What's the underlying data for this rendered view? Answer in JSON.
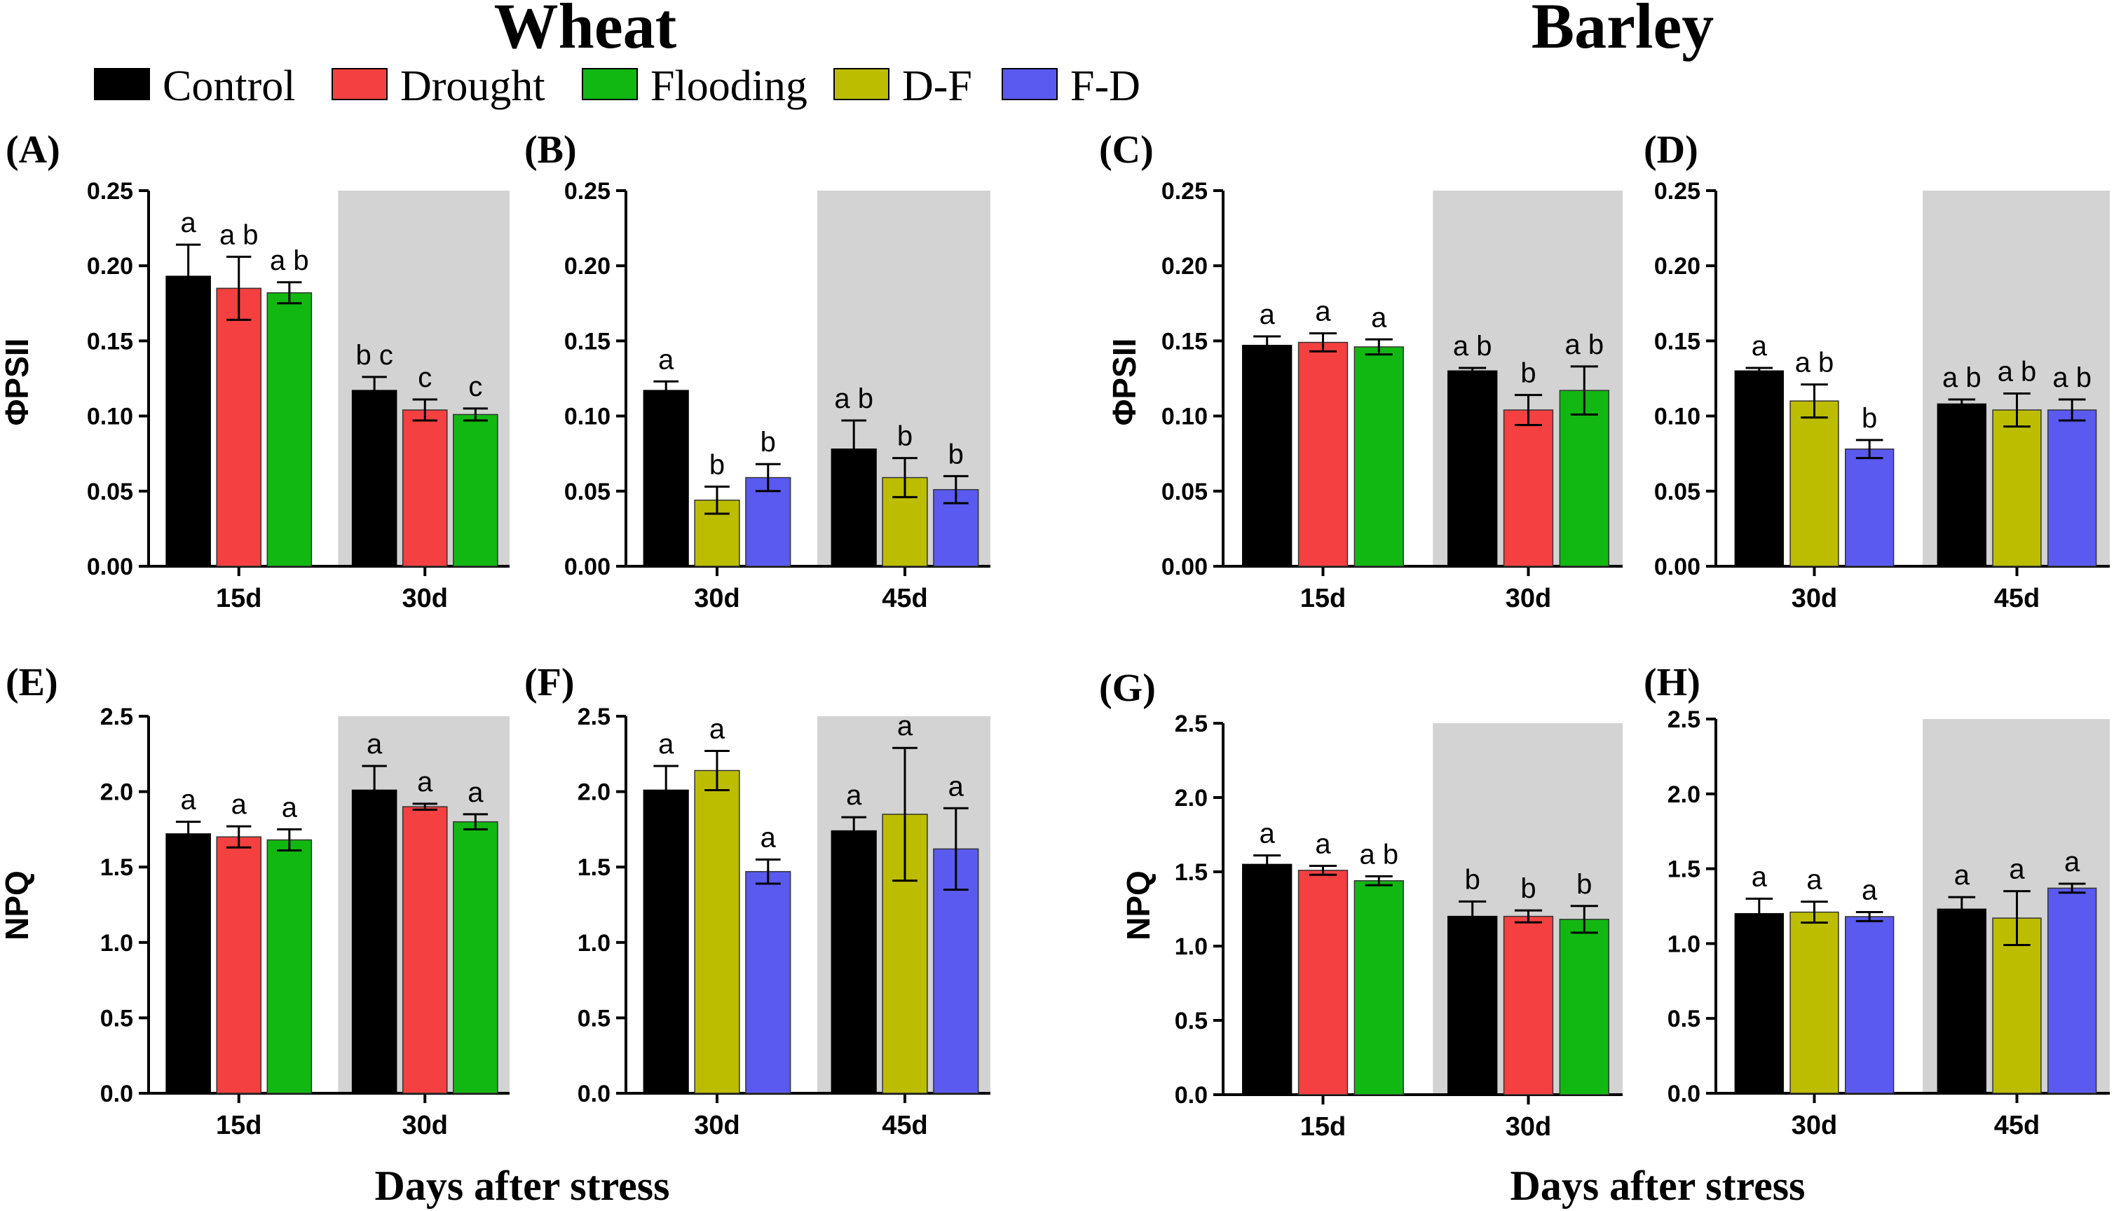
{
  "figure": {
    "titles": {
      "wheat": "Wheat",
      "barley": "Barley"
    },
    "legend": [
      {
        "label": "Control",
        "color": "#000000"
      },
      {
        "label": "Drought",
        "color": "#f44040"
      },
      {
        "label": "Flooding",
        "color": "#12b812"
      },
      {
        "label": "D-F",
        "color": "#bdbd00"
      },
      {
        "label": "F-D",
        "color": "#5a5af0"
      }
    ],
    "x_titles": {
      "wheat": "Days after stress",
      "barley": "Days after stress"
    },
    "ylabels": {
      "phipsii": "ΦPSII",
      "npq": "NPQ"
    }
  },
  "chart_data": [
    {
      "panel": "(A)",
      "type": "bar",
      "ylabel": "ΦPSII",
      "ylim": [
        0,
        0.25
      ],
      "yticks": [
        "0.00",
        "0.05",
        "0.10",
        "0.15",
        "0.20",
        "0.25"
      ],
      "shaded_group": 1,
      "groups": [
        {
          "label": "15d",
          "bars": [
            {
              "series": "Control",
              "value": 0.193,
              "err": 0.021,
              "sig": "a"
            },
            {
              "series": "Drought",
              "value": 0.185,
              "err": 0.021,
              "sig": "a b"
            },
            {
              "series": "Flooding",
              "value": 0.182,
              "err": 0.007,
              "sig": "a b"
            }
          ]
        },
        {
          "label": "30d",
          "bars": [
            {
              "series": "Control",
              "value": 0.117,
              "err": 0.009,
              "sig": "b c"
            },
            {
              "series": "Drought",
              "value": 0.104,
              "err": 0.007,
              "sig": "c"
            },
            {
              "series": "Flooding",
              "value": 0.101,
              "err": 0.004,
              "sig": "c"
            }
          ]
        }
      ]
    },
    {
      "panel": "(B)",
      "type": "bar",
      "ylabel": "",
      "ylim": [
        0,
        0.25
      ],
      "yticks": [
        "0.00",
        "0.05",
        "0.10",
        "0.15",
        "0.20",
        "0.25"
      ],
      "shaded_group": 1,
      "groups": [
        {
          "label": "30d",
          "bars": [
            {
              "series": "Control",
              "value": 0.117,
              "err": 0.006,
              "sig": "a"
            },
            {
              "series": "D-F",
              "value": 0.044,
              "err": 0.009,
              "sig": "b"
            },
            {
              "series": "F-D",
              "value": 0.059,
              "err": 0.009,
              "sig": "b"
            }
          ]
        },
        {
          "label": "45d",
          "bars": [
            {
              "series": "Control",
              "value": 0.078,
              "err": 0.019,
              "sig": "a b"
            },
            {
              "series": "D-F",
              "value": 0.059,
              "err": 0.013,
              "sig": "b"
            },
            {
              "series": "F-D",
              "value": 0.051,
              "err": 0.009,
              "sig": "b"
            }
          ]
        }
      ]
    },
    {
      "panel": "(C)",
      "type": "bar",
      "ylabel": "ΦPSII",
      "ylim": [
        0,
        0.25
      ],
      "yticks": [
        "0.00",
        "0.05",
        "0.10",
        "0.15",
        "0.20",
        "0.25"
      ],
      "shaded_group": 1,
      "groups": [
        {
          "label": "15d",
          "bars": [
            {
              "series": "Control",
              "value": 0.147,
              "err": 0.006,
              "sig": "a"
            },
            {
              "series": "Drought",
              "value": 0.149,
              "err": 0.006,
              "sig": "a"
            },
            {
              "series": "Flooding",
              "value": 0.146,
              "err": 0.005,
              "sig": "a"
            }
          ]
        },
        {
          "label": "30d",
          "bars": [
            {
              "series": "Control",
              "value": 0.13,
              "err": 0.002,
              "sig": "a b"
            },
            {
              "series": "Drought",
              "value": 0.104,
              "err": 0.01,
              "sig": "b"
            },
            {
              "series": "Flooding",
              "value": 0.117,
              "err": 0.016,
              "sig": "a b"
            }
          ]
        }
      ]
    },
    {
      "panel": "(D)",
      "type": "bar",
      "ylabel": "",
      "ylim": [
        0,
        0.25
      ],
      "yticks": [
        "0.00",
        "0.05",
        "0.10",
        "0.15",
        "0.20",
        "0.25"
      ],
      "shaded_group": 1,
      "groups": [
        {
          "label": "30d",
          "bars": [
            {
              "series": "Control",
              "value": 0.13,
              "err": 0.002,
              "sig": "a"
            },
            {
              "series": "D-F",
              "value": 0.11,
              "err": 0.011,
              "sig": "a b"
            },
            {
              "series": "F-D",
              "value": 0.078,
              "err": 0.006,
              "sig": "b"
            }
          ]
        },
        {
          "label": "45d",
          "bars": [
            {
              "series": "Control",
              "value": 0.108,
              "err": 0.003,
              "sig": "a b"
            },
            {
              "series": "D-F",
              "value": 0.104,
              "err": 0.011,
              "sig": "a b"
            },
            {
              "series": "F-D",
              "value": 0.104,
              "err": 0.007,
              "sig": "a b"
            }
          ]
        }
      ]
    },
    {
      "panel": "(E)",
      "type": "bar",
      "ylabel": "NPQ",
      "ylim": [
        0,
        2.5
      ],
      "yticks": [
        "0.0",
        "0.5",
        "1.0",
        "1.5",
        "2.0",
        "2.5"
      ],
      "shaded_group": 1,
      "groups": [
        {
          "label": "15d",
          "bars": [
            {
              "series": "Control",
              "value": 1.72,
              "err": 0.08,
              "sig": "a"
            },
            {
              "series": "Drought",
              "value": 1.7,
              "err": 0.07,
              "sig": "a"
            },
            {
              "series": "Flooding",
              "value": 1.68,
              "err": 0.07,
              "sig": "a"
            }
          ]
        },
        {
          "label": "30d",
          "bars": [
            {
              "series": "Control",
              "value": 2.01,
              "err": 0.16,
              "sig": "a"
            },
            {
              "series": "Drought",
              "value": 1.9,
              "err": 0.02,
              "sig": "a"
            },
            {
              "series": "Flooding",
              "value": 1.8,
              "err": 0.05,
              "sig": "a"
            }
          ]
        }
      ]
    },
    {
      "panel": "(F)",
      "type": "bar",
      "ylabel": "",
      "ylim": [
        0,
        2.5
      ],
      "yticks": [
        "0.0",
        "0.5",
        "1.0",
        "1.5",
        "2.0",
        "2.5"
      ],
      "shaded_group": 1,
      "groups": [
        {
          "label": "30d",
          "bars": [
            {
              "series": "Control",
              "value": 2.01,
              "err": 0.16,
              "sig": "a"
            },
            {
              "series": "D-F",
              "value": 2.14,
              "err": 0.13,
              "sig": "a"
            },
            {
              "series": "F-D",
              "value": 1.47,
              "err": 0.08,
              "sig": "a"
            }
          ]
        },
        {
          "label": "45d",
          "bars": [
            {
              "series": "Control",
              "value": 1.74,
              "err": 0.09,
              "sig": "a"
            },
            {
              "series": "D-F",
              "value": 1.85,
              "err": 0.44,
              "sig": "a"
            },
            {
              "series": "F-D",
              "value": 1.62,
              "err": 0.27,
              "sig": "a"
            }
          ]
        }
      ]
    },
    {
      "panel": "(G)",
      "type": "bar",
      "ylabel": "NPQ",
      "ylim": [
        0,
        2.5
      ],
      "yticks": [
        "0.0",
        "0.5",
        "1.0",
        "1.5",
        "2.0",
        "2.5"
      ],
      "shaded_group": 1,
      "groups": [
        {
          "label": "15d",
          "bars": [
            {
              "series": "Control",
              "value": 1.55,
              "err": 0.06,
              "sig": "a"
            },
            {
              "series": "Drought",
              "value": 1.51,
              "err": 0.03,
              "sig": "a"
            },
            {
              "series": "Flooding",
              "value": 1.44,
              "err": 0.03,
              "sig": "a b"
            }
          ]
        },
        {
          "label": "30d",
          "bars": [
            {
              "series": "Control",
              "value": 1.2,
              "err": 0.1,
              "sig": "b"
            },
            {
              "series": "Drought",
              "value": 1.2,
              "err": 0.04,
              "sig": "b"
            },
            {
              "series": "Flooding",
              "value": 1.18,
              "err": 0.09,
              "sig": "b"
            }
          ]
        }
      ]
    },
    {
      "panel": "(H)",
      "type": "bar",
      "ylabel": "",
      "ylim": [
        0,
        2.5
      ],
      "yticks": [
        "0.0",
        "0.5",
        "1.0",
        "1.5",
        "2.0",
        "2.5"
      ],
      "shaded_group": 1,
      "groups": [
        {
          "label": "30d",
          "bars": [
            {
              "series": "Control",
              "value": 1.2,
              "err": 0.1,
              "sig": "a"
            },
            {
              "series": "D-F",
              "value": 1.21,
              "err": 0.07,
              "sig": "a"
            },
            {
              "series": "F-D",
              "value": 1.18,
              "err": 0.03,
              "sig": "a"
            }
          ]
        },
        {
          "label": "45d",
          "bars": [
            {
              "series": "Control",
              "value": 1.23,
              "err": 0.08,
              "sig": "a"
            },
            {
              "series": "D-F",
              "value": 1.17,
              "err": 0.18,
              "sig": "a"
            },
            {
              "series": "F-D",
              "value": 1.37,
              "err": 0.03,
              "sig": "a"
            }
          ]
        }
      ]
    }
  ]
}
